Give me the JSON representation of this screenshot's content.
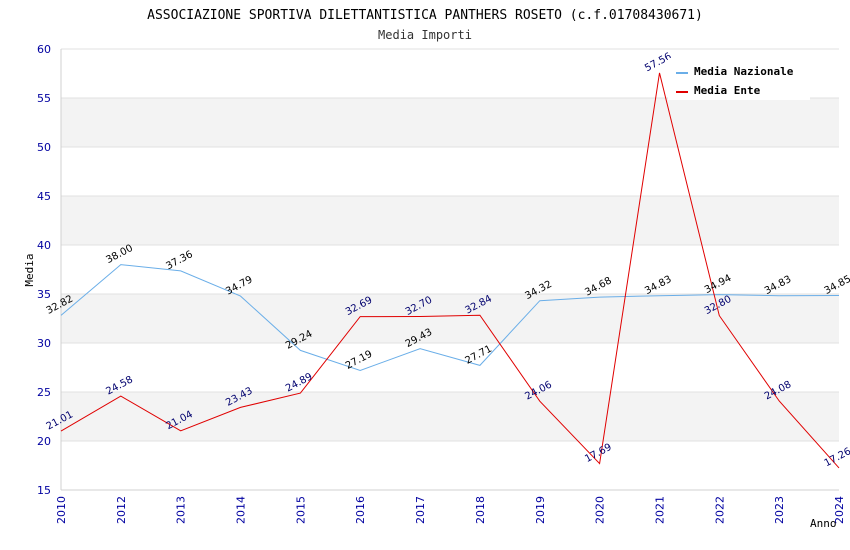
{
  "chart_data": {
    "type": "line",
    "title": "ASSOCIAZIONE SPORTIVA DILETTANTISTICA PANTHERS ROSETO (c.f.01708430671)",
    "subtitle": "Media Importi",
    "xlabel": "Anno",
    "ylabel": "Media",
    "ylim": [
      15,
      60
    ],
    "yticks": [
      "15",
      "20",
      "25",
      "30",
      "35",
      "40",
      "45",
      "50",
      "55",
      "60"
    ],
    "categories": [
      "2010",
      "2012",
      "2013",
      "2014",
      "2015",
      "2016",
      "2017",
      "2018",
      "2019",
      "2020",
      "2021",
      "2022",
      "2023",
      "2024"
    ],
    "series": [
      {
        "name": "Media Nazionale",
        "color": "#6aaee8",
        "values": [
          32.82,
          38.0,
          37.36,
          34.79,
          29.24,
          27.19,
          29.43,
          27.71,
          34.32,
          34.68,
          34.83,
          34.94,
          34.83,
          34.85
        ],
        "labels": [
          "32.82",
          "38.00",
          "37.36",
          "34.79",
          "29.24",
          "27.19",
          "29.43",
          "27.71",
          "34.32",
          "34.68",
          "34.83",
          "34.94",
          "34.83",
          "34.85"
        ]
      },
      {
        "name": "Media Ente",
        "color": "#e00000",
        "values": [
          21.01,
          24.58,
          21.04,
          23.43,
          24.89,
          32.69,
          32.7,
          32.84,
          24.06,
          17.69,
          57.56,
          32.8,
          24.08,
          17.26
        ],
        "labels": [
          "21.01",
          "24.58",
          "21.04",
          "23.43",
          "24.89",
          "32.69",
          "32.70",
          "32.84",
          "24.06",
          "17.69",
          "57.56",
          "32.80",
          "24.08",
          "17.26"
        ]
      }
    ],
    "legend_position": "top-right",
    "grid": true
  }
}
